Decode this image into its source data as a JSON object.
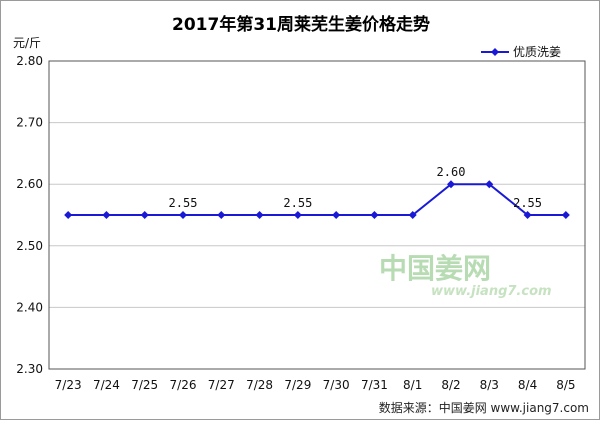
{
  "chart_data": {
    "type": "line",
    "title": "2017年第31周莱芜生姜价格走势",
    "ylabel": "元/斤",
    "categories": [
      "7/23",
      "7/24",
      "7/25",
      "7/26",
      "7/27",
      "7/28",
      "7/29",
      "7/30",
      "7/31",
      "8/1",
      "8/2",
      "8/3",
      "8/4",
      "8/5"
    ],
    "series": [
      {
        "name": "优质洗姜",
        "values": [
          2.55,
          2.55,
          2.55,
          2.55,
          2.55,
          2.55,
          2.55,
          2.55,
          2.55,
          2.55,
          2.6,
          2.6,
          2.55,
          2.55
        ]
      }
    ],
    "ylim": [
      2.3,
      2.8
    ],
    "yticks": [
      "2.80",
      "2.70",
      "2.60",
      "2.50",
      "2.40",
      "2.30"
    ],
    "data_labels": [
      {
        "index": 3,
        "text": "2.55"
      },
      {
        "index": 6,
        "text": "2.55"
      },
      {
        "index": 10,
        "text": "2.60"
      },
      {
        "index": 12,
        "text": "2.55"
      }
    ],
    "legend_position": "top-right",
    "grid": "horizontal",
    "line_color": "#1a1ad6"
  },
  "watermark": {
    "main": "中国姜网",
    "url": "www.jiang7.com"
  },
  "source_note": "数据来源：中国姜网 www.jiang7.com"
}
